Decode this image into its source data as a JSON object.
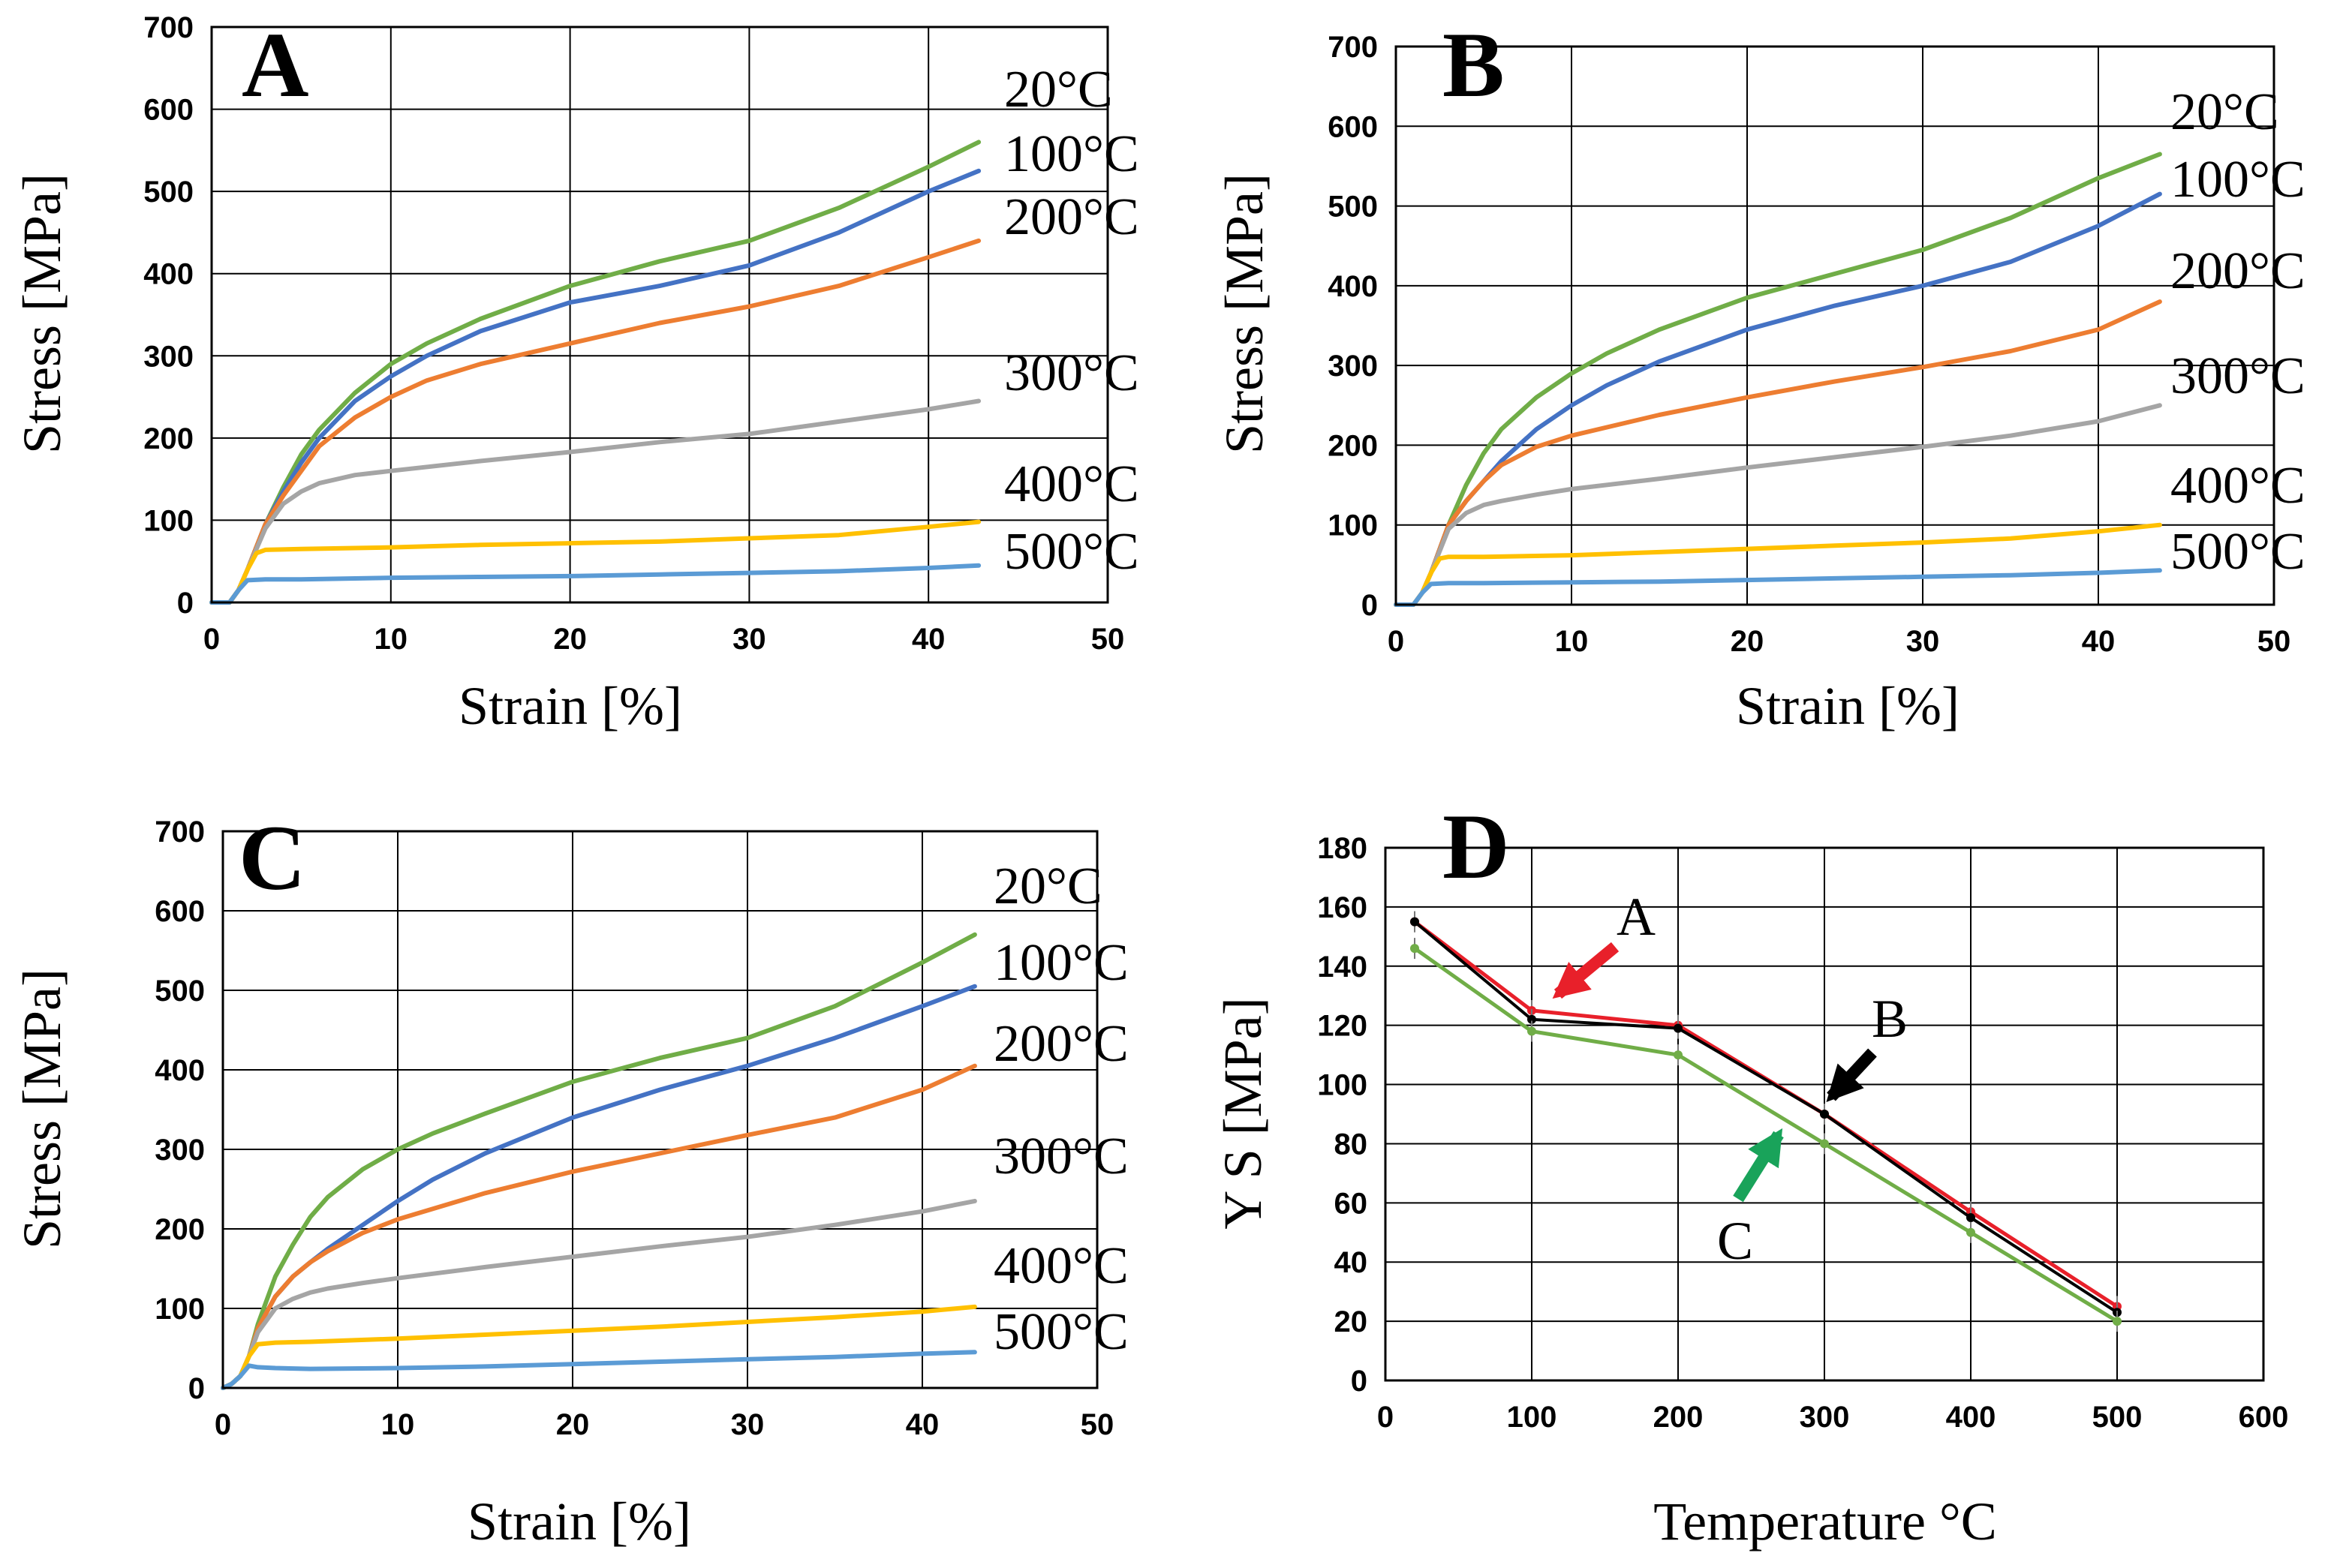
{
  "chart_data": [
    {
      "type": "line",
      "panel_label": "A",
      "xlabel": "Strain [%]",
      "ylabel": "Stress [MPa]",
      "xlim": [
        0,
        50
      ],
      "ylim": [
        0,
        700
      ],
      "x_ticks": [
        "0",
        "10",
        "20",
        "30",
        "40",
        "50"
      ],
      "y_ticks": [
        "0",
        "100",
        "200",
        "300",
        "400",
        "500",
        "600",
        "700"
      ],
      "grid": true,
      "series": [
        {
          "name": "20°C",
          "color": "#70ad47",
          "x": [
            0,
            1,
            1.5,
            2,
            3,
            4,
            5,
            6,
            8,
            10,
            12,
            15,
            20,
            25,
            30,
            35,
            40,
            42.8
          ],
          "y": [
            0,
            0,
            15,
            40,
            95,
            140,
            180,
            210,
            255,
            290,
            315,
            345,
            385,
            415,
            440,
            480,
            530,
            560
          ]
        },
        {
          "name": "100°C",
          "color": "#4472c4",
          "x": [
            0,
            1,
            1.5,
            2,
            3,
            4,
            5,
            6,
            8,
            10,
            12,
            15,
            20,
            25,
            30,
            35,
            40,
            42.8
          ],
          "y": [
            0,
            0,
            15,
            40,
            95,
            135,
            170,
            200,
            245,
            275,
            300,
            330,
            365,
            385,
            410,
            450,
            500,
            525
          ]
        },
        {
          "name": "200°C",
          "color": "#ed7d31",
          "x": [
            0,
            1,
            1.5,
            2,
            3,
            4,
            5,
            6,
            8,
            10,
            12,
            15,
            20,
            25,
            30,
            35,
            40,
            42.8
          ],
          "y": [
            0,
            0,
            15,
            40,
            95,
            130,
            160,
            190,
            225,
            250,
            270,
            290,
            315,
            340,
            360,
            385,
            420,
            440
          ]
        },
        {
          "name": "300°C",
          "color": "#a5a5a5",
          "x": [
            0,
            1,
            1.5,
            2,
            3,
            4,
            5,
            6,
            8,
            10,
            15,
            20,
            25,
            30,
            35,
            40,
            42.8
          ],
          "y": [
            0,
            0,
            15,
            40,
            90,
            120,
            135,
            145,
            155,
            160,
            172,
            183,
            195,
            205,
            220,
            235,
            245
          ]
        },
        {
          "name": "400°C",
          "color": "#ffc000",
          "x": [
            0,
            1,
            1.5,
            2,
            2.5,
            3,
            5,
            10,
            15,
            20,
            25,
            30,
            35,
            40,
            42.8
          ],
          "y": [
            0,
            0,
            15,
            40,
            60,
            64,
            65,
            67,
            70,
            72,
            74,
            78,
            82,
            92,
            98
          ]
        },
        {
          "name": "500°C",
          "color": "#5b9bd5",
          "x": [
            0,
            1,
            1.5,
            2,
            3,
            5,
            10,
            15,
            20,
            25,
            30,
            35,
            40,
            42.8
          ],
          "y": [
            0,
            0,
            15,
            27,
            28,
            28,
            30,
            31,
            32,
            34,
            36,
            38,
            42,
            45
          ]
        }
      ]
    },
    {
      "type": "line",
      "panel_label": "B",
      "xlabel": "Strain [%]",
      "ylabel": "Stress [MPa]",
      "xlim": [
        0,
        50
      ],
      "ylim": [
        0,
        700
      ],
      "x_ticks": [
        "0",
        "10",
        "20",
        "30",
        "40",
        "50"
      ],
      "y_ticks": [
        "0",
        "100",
        "200",
        "300",
        "400",
        "500",
        "600",
        "700"
      ],
      "grid": true,
      "series": [
        {
          "name": "20°C",
          "color": "#70ad47",
          "x": [
            0,
            1,
            1.5,
            2,
            3,
            4,
            5,
            6,
            8,
            10,
            12,
            15,
            20,
            25,
            30,
            35,
            40,
            43.5
          ],
          "y": [
            0,
            0,
            15,
            40,
            100,
            150,
            190,
            220,
            260,
            290,
            315,
            345,
            385,
            415,
            445,
            485,
            535,
            565
          ]
        },
        {
          "name": "100°C",
          "color": "#4472c4",
          "x": [
            0,
            1,
            1.5,
            2,
            3,
            4,
            5,
            6,
            8,
            10,
            12,
            15,
            20,
            25,
            30,
            35,
            40,
            43.5
          ],
          "y": [
            0,
            0,
            15,
            40,
            100,
            130,
            155,
            180,
            220,
            250,
            275,
            305,
            345,
            375,
            400,
            430,
            475,
            515
          ]
        },
        {
          "name": "200°C",
          "color": "#ed7d31",
          "x": [
            0,
            1,
            1.5,
            2,
            3,
            4,
            5,
            6,
            8,
            10,
            15,
            20,
            25,
            30,
            35,
            40,
            43.5
          ],
          "y": [
            0,
            0,
            15,
            40,
            100,
            130,
            155,
            175,
            198,
            212,
            238,
            260,
            280,
            298,
            318,
            345,
            380
          ]
        },
        {
          "name": "300°C",
          "color": "#a5a5a5",
          "x": [
            0,
            1,
            1.5,
            2,
            3,
            4,
            5,
            6,
            8,
            10,
            15,
            20,
            25,
            30,
            35,
            40,
            43.5
          ],
          "y": [
            0,
            0,
            15,
            40,
            95,
            115,
            125,
            130,
            138,
            145,
            158,
            172,
            185,
            198,
            212,
            230,
            250
          ]
        },
        {
          "name": "400°C",
          "color": "#ffc000",
          "x": [
            0,
            1,
            1.5,
            2,
            2.5,
            3,
            5,
            10,
            15,
            20,
            25,
            30,
            35,
            40,
            43.5
          ],
          "y": [
            0,
            0,
            15,
            40,
            58,
            60,
            60,
            62,
            66,
            70,
            74,
            78,
            83,
            92,
            100
          ]
        },
        {
          "name": "500°C",
          "color": "#5b9bd5",
          "x": [
            0,
            1,
            1.5,
            2,
            3,
            5,
            10,
            15,
            20,
            25,
            30,
            35,
            40,
            43.5
          ],
          "y": [
            0,
            0,
            15,
            26,
            27,
            27,
            28,
            29,
            31,
            33,
            35,
            37,
            40,
            43
          ]
        }
      ]
    },
    {
      "type": "line",
      "panel_label": "C",
      "xlabel": "Strain [%]",
      "ylabel": "Stress [MPa]",
      "xlim": [
        0,
        50
      ],
      "ylim": [
        0,
        700
      ],
      "x_ticks": [
        "0",
        "10",
        "20",
        "30",
        "40",
        "50"
      ],
      "y_ticks": [
        "0",
        "100",
        "200",
        "300",
        "400",
        "500",
        "600",
        "700"
      ],
      "grid": true,
      "series": [
        {
          "name": "20°C",
          "color": "#70ad47",
          "x": [
            0,
            0.5,
            1,
            1.5,
            2,
            3,
            4,
            5,
            6,
            8,
            10,
            12,
            15,
            20,
            25,
            30,
            35,
            40,
            43
          ],
          "y": [
            0,
            5,
            15,
            40,
            80,
            140,
            180,
            215,
            240,
            275,
            300,
            320,
            345,
            385,
            415,
            440,
            480,
            535,
            570
          ]
        },
        {
          "name": "100°C",
          "color": "#4472c4",
          "x": [
            0,
            0.5,
            1,
            1.5,
            2,
            3,
            4,
            5,
            6,
            8,
            10,
            12,
            15,
            20,
            25,
            30,
            35,
            40,
            43
          ],
          "y": [
            0,
            5,
            15,
            40,
            75,
            115,
            140,
            158,
            175,
            205,
            235,
            262,
            295,
            340,
            375,
            405,
            440,
            480,
            505
          ]
        },
        {
          "name": "200°C",
          "color": "#ed7d31",
          "x": [
            0,
            0.5,
            1,
            1.5,
            2,
            3,
            4,
            5,
            6,
            8,
            10,
            15,
            20,
            25,
            30,
            35,
            40,
            43
          ],
          "y": [
            0,
            5,
            15,
            40,
            75,
            115,
            140,
            158,
            172,
            195,
            212,
            245,
            272,
            295,
            318,
            340,
            375,
            405
          ]
        },
        {
          "name": "300°C",
          "color": "#a5a5a5",
          "x": [
            0,
            0.5,
            1,
            1.5,
            2,
            3,
            4,
            5,
            6,
            8,
            10,
            15,
            20,
            25,
            30,
            35,
            40,
            43
          ],
          "y": [
            0,
            5,
            15,
            40,
            70,
            100,
            112,
            120,
            125,
            132,
            138,
            152,
            165,
            178,
            190,
            205,
            222,
            235
          ]
        },
        {
          "name": "400°C",
          "color": "#ffc000",
          "x": [
            0,
            0.5,
            1,
            1.5,
            2,
            3,
            5,
            10,
            15,
            20,
            25,
            30,
            35,
            40,
            43
          ],
          "y": [
            0,
            5,
            15,
            40,
            55,
            57,
            58,
            62,
            67,
            72,
            77,
            83,
            89,
            96,
            102
          ]
        },
        {
          "name": "500°C",
          "color": "#5b9bd5",
          "x": [
            0,
            0.5,
            1,
            1.5,
            2,
            3,
            5,
            10,
            15,
            20,
            25,
            30,
            35,
            40,
            43
          ],
          "y": [
            0,
            5,
            15,
            28,
            26,
            25,
            24,
            25,
            27,
            30,
            33,
            36,
            39,
            43,
            45
          ]
        }
      ]
    },
    {
      "type": "line",
      "panel_label": "D",
      "xlabel": "Temperature °C",
      "ylabel": "Y S [MPa]",
      "xlim": [
        0,
        600
      ],
      "ylim": [
        0,
        180
      ],
      "x_ticks": [
        "0",
        "100",
        "200",
        "300",
        "400",
        "500",
        "600"
      ],
      "y_ticks": [
        "0",
        "20",
        "40",
        "60",
        "80",
        "100",
        "120",
        "140",
        "160",
        "180"
      ],
      "grid": true,
      "series": [
        {
          "name": "A",
          "color": "#e8202a",
          "x": [
            20,
            100,
            200,
            300,
            400,
            500
          ],
          "y": [
            155,
            125,
            120,
            90,
            57,
            25
          ]
        },
        {
          "name": "B",
          "color": "#000000",
          "x": [
            20,
            100,
            200,
            300,
            400,
            500
          ],
          "y": [
            155,
            122,
            119,
            90,
            55,
            23
          ]
        },
        {
          "name": "C",
          "color": "#70ad47",
          "x": [
            20,
            100,
            200,
            300,
            400,
            500
          ],
          "y": [
            146,
            118,
            110,
            80,
            50,
            20
          ]
        }
      ],
      "arrow_colors": {
        "A": "#e8202a",
        "B": "#000000",
        "C": "#19a35a"
      }
    }
  ]
}
